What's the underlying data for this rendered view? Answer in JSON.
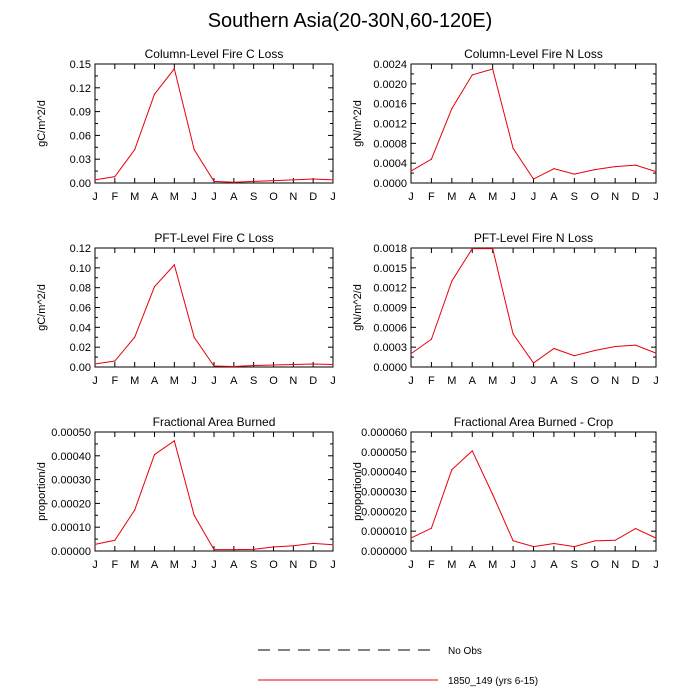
{
  "title": "Southern Asia(20-30N,60-120E)",
  "legend": {
    "entries": [
      {
        "label": "No Obs",
        "style": "dashed",
        "color": "#000000"
      },
      {
        "label": "1850_149 (yrs 6-15)",
        "style": "solid",
        "color": "#e8000b"
      }
    ]
  },
  "chart_data": [
    {
      "type": "line",
      "title": "Column-Level Fire C Loss",
      "ylabel": "gC/m^2/d",
      "categories": [
        "J",
        "F",
        "M",
        "A",
        "M",
        "J",
        "J",
        "A",
        "S",
        "O",
        "N",
        "D",
        "J"
      ],
      "ylim": [
        0,
        0.15
      ],
      "yticks": [
        "0.00",
        "0.03",
        "0.06",
        "0.09",
        "0.12",
        "0.15"
      ],
      "grid": false,
      "series": [
        {
          "color": "#e8000b",
          "values": [
            0.004,
            0.008,
            0.042,
            0.112,
            0.144,
            0.042,
            0.002,
            0.001,
            0.002,
            0.003,
            0.004,
            0.005,
            0.004
          ]
        }
      ]
    },
    {
      "type": "line",
      "title": "Column-Level Fire N Loss",
      "ylabel": "gN/m^2/d",
      "categories": [
        "J",
        "F",
        "M",
        "A",
        "M",
        "J",
        "J",
        "A",
        "S",
        "O",
        "N",
        "D",
        "J"
      ],
      "ylim": [
        0,
        0.0024
      ],
      "yticks": [
        "0.0000",
        "0.0004",
        "0.0008",
        "0.0012",
        "0.0016",
        "0.0020",
        "0.0024"
      ],
      "grid": false,
      "series": [
        {
          "color": "#e8000b",
          "values": [
            0.00024,
            0.00048,
            0.0015,
            0.00218,
            0.0023,
            0.0007,
            8e-05,
            0.00029,
            0.00018,
            0.00027,
            0.00033,
            0.00036,
            0.00023
          ]
        }
      ]
    },
    {
      "type": "line",
      "title": "PFT-Level Fire C Loss",
      "ylabel": "gC/m^2/d",
      "categories": [
        "J",
        "F",
        "M",
        "A",
        "M",
        "J",
        "J",
        "A",
        "S",
        "O",
        "N",
        "D",
        "J"
      ],
      "ylim": [
        0,
        0.12
      ],
      "yticks": [
        "0.00",
        "0.02",
        "0.04",
        "0.06",
        "0.08",
        "0.10",
        "0.12"
      ],
      "grid": false,
      "series": [
        {
          "color": "#e8000b",
          "values": [
            0.003,
            0.006,
            0.03,
            0.081,
            0.103,
            0.03,
            0.001,
            0.0005,
            0.0015,
            0.002,
            0.0025,
            0.003,
            0.0025
          ]
        }
      ]
    },
    {
      "type": "line",
      "title": "PFT-Level Fire N Loss",
      "ylabel": "gN/m^2/d",
      "categories": [
        "J",
        "F",
        "M",
        "A",
        "M",
        "J",
        "J",
        "A",
        "S",
        "O",
        "N",
        "D",
        "J"
      ],
      "ylim": [
        0,
        0.0018
      ],
      "yticks": [
        "0.0000",
        "0.0003",
        "0.0006",
        "0.0009",
        "0.0012",
        "0.0015",
        "0.0018"
      ],
      "grid": false,
      "series": [
        {
          "color": "#e8000b",
          "values": [
            0.0002,
            0.00042,
            0.0013,
            0.00179,
            0.00179,
            0.0005,
            6e-05,
            0.00028,
            0.00017,
            0.00025,
            0.00031,
            0.00033,
            0.00021
          ]
        }
      ]
    },
    {
      "type": "line",
      "title": "Fractional Area Burned",
      "ylabel": "proportion/d",
      "categories": [
        "J",
        "F",
        "M",
        "A",
        "M",
        "J",
        "J",
        "A",
        "S",
        "O",
        "N",
        "D",
        "J"
      ],
      "ylim": [
        0,
        0.0005
      ],
      "yticks": [
        "0.00000",
        "0.00010",
        "0.00020",
        "0.00030",
        "0.00040",
        "0.00050"
      ],
      "grid": false,
      "series": [
        {
          "color": "#e8000b",
          "values": [
            2.8e-05,
            4.5e-05,
            0.000172,
            0.000405,
            0.000463,
            0.00015,
            6e-06,
            6e-06,
            7e-06,
            1.7e-05,
            2.2e-05,
            3.2e-05,
            2.6e-05
          ]
        }
      ]
    },
    {
      "type": "line",
      "title": "Fractional Area Burned - Crop",
      "ylabel": "proportion/d",
      "categories": [
        "J",
        "F",
        "M",
        "A",
        "M",
        "J",
        "J",
        "A",
        "S",
        "O",
        "N",
        "D",
        "J"
      ],
      "ylim": [
        0,
        6e-05
      ],
      "yticks": [
        "0.000000",
        "0.000010",
        "0.000020",
        "0.000030",
        "0.000040",
        "0.000050",
        "0.000060"
      ],
      "grid": false,
      "series": [
        {
          "color": "#e8000b",
          "values": [
            6.5e-06,
            1.15e-05,
            4.1e-05,
            5.05e-05,
            2.85e-05,
            5.2e-06,
            2.2e-06,
            3.8e-06,
            2.2e-06,
            5.1e-06,
            5.4e-06,
            1.13e-05,
            6.5e-06
          ]
        }
      ]
    }
  ]
}
